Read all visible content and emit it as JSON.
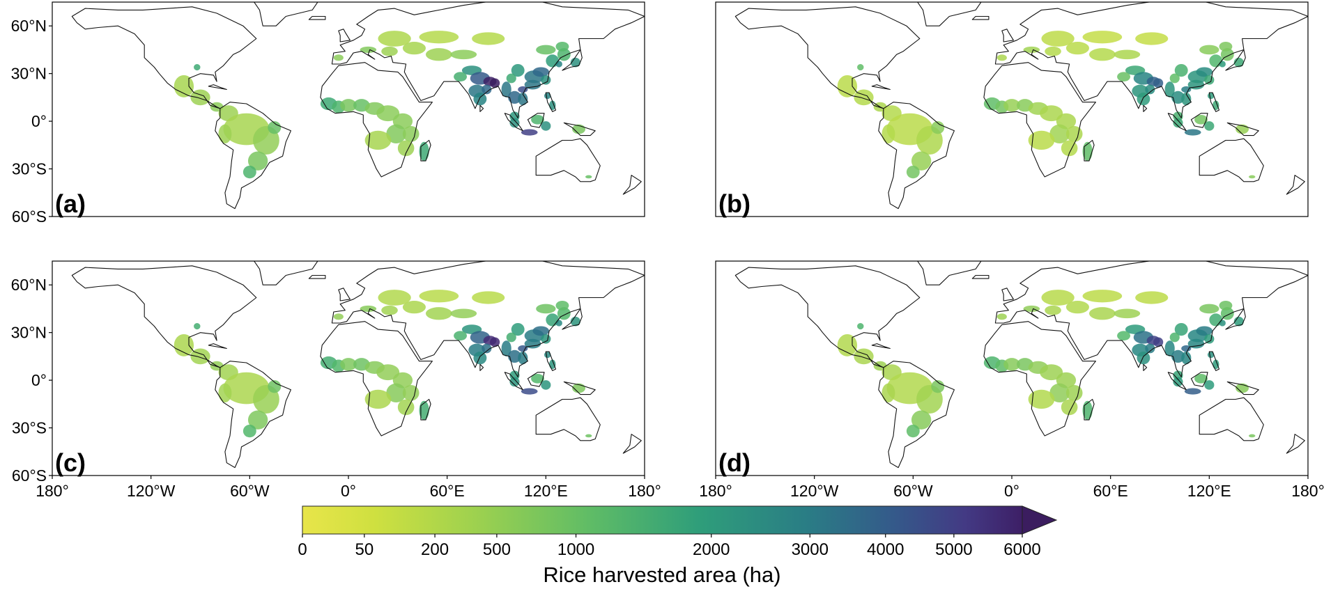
{
  "figure": {
    "panels": [
      {
        "label": "(a)",
        "row": 0,
        "col": 0,
        "show_lat_ticks": true,
        "show_lon_ticks": false,
        "intensity": 1.0
      },
      {
        "label": "(b)",
        "row": 0,
        "col": 1,
        "show_lat_ticks": false,
        "show_lon_ticks": false,
        "intensity": 0.55
      },
      {
        "label": "(c)",
        "row": 1,
        "col": 0,
        "show_lat_ticks": true,
        "show_lon_ticks": true,
        "intensity": 0.9
      },
      {
        "label": "(d)",
        "row": 1,
        "col": 1,
        "show_lat_ticks": false,
        "show_lon_ticks": true,
        "intensity": 0.75
      }
    ],
    "lat_ticks": [
      {
        "value": 60,
        "label": "60°N"
      },
      {
        "value": 30,
        "label": "30°N"
      },
      {
        "value": 0,
        "label": "0°"
      },
      {
        "value": -30,
        "label": "30°S"
      },
      {
        "value": -60,
        "label": "60°S"
      }
    ],
    "lon_ticks": [
      {
        "value": -180,
        "label": "180°"
      },
      {
        "value": -120,
        "label": "120°W"
      },
      {
        "value": -60,
        "label": "60°W"
      },
      {
        "value": 0,
        "label": "0°"
      },
      {
        "value": 60,
        "label": "60°E"
      },
      {
        "value": 120,
        "label": "120°E"
      },
      {
        "value": 180,
        "label": "180°"
      }
    ],
    "extent": {
      "lon_min": -180,
      "lon_max": 180,
      "lat_min": -60,
      "lat_max": 75
    }
  },
  "colorbar": {
    "label": "Rice harvested area (ha)",
    "ticks": [
      "0",
      "50",
      "200",
      "500",
      "1000",
      "2000",
      "3000",
      "4000",
      "5000",
      "6000"
    ],
    "tick_values": [
      0,
      50,
      200,
      500,
      1000,
      2000,
      3000,
      4000,
      5000,
      6000
    ],
    "extend": "max",
    "colors": [
      "#e8e54a",
      "#bfdc48",
      "#8ccc5a",
      "#55b96a",
      "#2f9e7a",
      "#268283",
      "#2f6789",
      "#3b4e8b",
      "#472f7e",
      "#3b1d5f"
    ]
  }
}
